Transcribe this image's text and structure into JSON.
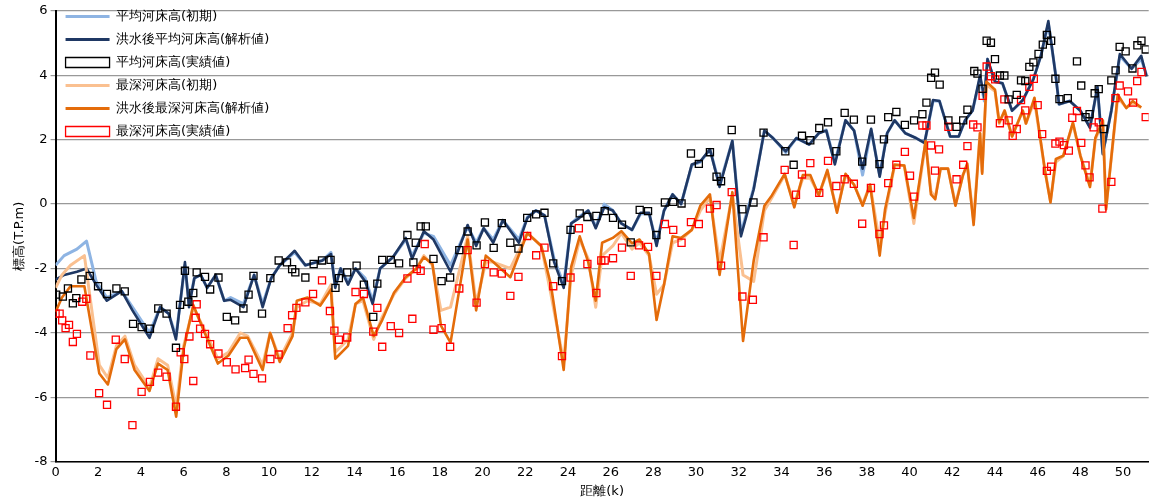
{
  "chart_data": {
    "type": "line",
    "xlabel": "距離(k)",
    "ylabel": "標高(T.P.m)",
    "xlim": [
      0,
      51.2
    ],
    "xticks": [
      0,
      2,
      4,
      6,
      8,
      10,
      12,
      14,
      16,
      18,
      20,
      22,
      24,
      26,
      28,
      30,
      32,
      34,
      36,
      38,
      40,
      42,
      44,
      46,
      48,
      50
    ],
    "ylim": [
      -8,
      6
    ],
    "yticks": [
      -8,
      -6,
      -4,
      -2,
      0,
      2,
      4,
      6
    ],
    "grid": "y",
    "legend": "top left",
    "series": [
      {
        "name": "平均河床高(初期)",
        "marker": "none",
        "color": "#8eb4e3",
        "x": [
          0,
          0.4,
          1.0,
          1.45,
          1.9,
          2.4,
          3.1,
          3.6,
          4.4,
          4.9,
          5.3,
          5.64,
          6.06,
          6.25,
          6.5,
          6.8,
          7.1,
          7.5,
          7.9,
          8.2,
          8.8,
          9.3,
          9.7,
          10.1,
          10.5,
          11.2,
          11.7,
          12.5,
          12.9,
          13.1,
          13.35,
          13.7,
          14.05,
          14.5,
          14.85,
          15.2,
          15.8,
          16.4,
          16.7,
          17.25,
          17.7,
          18.5,
          19.3,
          19.7,
          20.05,
          20.5,
          20.95,
          21.7,
          22.1,
          22.5,
          22.9,
          23.35,
          23.8,
          24.15,
          24.5,
          24.95,
          25.3,
          25.7,
          26.1,
          26.5,
          27.0,
          27.4,
          27.8,
          28.15,
          28.5,
          28.9,
          29.3,
          29.8,
          30.2,
          30.65,
          31.1,
          31.7,
          32.1,
          32.7,
          33.2,
          33.6,
          34.2,
          34.7,
          35.3,
          35.75,
          36.1,
          36.5,
          37.0,
          37.4,
          37.8,
          38.2,
          38.6,
          38.95,
          39.3,
          39.8,
          40.3,
          40.7,
          41.1,
          41.4,
          41.9,
          42.3,
          42.6,
          42.95,
          43.3,
          43.5,
          43.65,
          44.0,
          44.35,
          44.8,
          45.3,
          45.8,
          46.15,
          46.5,
          46.85,
          47.0,
          47.5,
          48.0,
          48.45,
          48.8,
          49.05,
          49.45,
          49.85,
          50.4,
          50.85,
          51.1
        ],
        "values": [
          -1.9,
          -1.6,
          -1.4,
          -1.15,
          -2.4,
          -2.9,
          -2.7,
          -3.2,
          -4.0,
          -3.2,
          -3.4,
          -4.1,
          -1.9,
          -3.1,
          -2.3,
          -2.2,
          -2.6,
          -2.2,
          -3.0,
          -2.9,
          -3.1,
          -2.2,
          -3.1,
          -2.3,
          -1.9,
          -1.5,
          -1.9,
          -1.75,
          -1.5,
          -2.5,
          -2.0,
          -2.4,
          -2.0,
          -2.3,
          -3.0,
          -2.0,
          -1.65,
          -1.1,
          -1.6,
          -0.9,
          -1.0,
          -1.9,
          -0.7,
          -1.2,
          -0.75,
          -1.1,
          -0.5,
          -1.1,
          -0.4,
          -0.2,
          -0.35,
          -1.7,
          -2.5,
          -0.6,
          -0.4,
          -0.2,
          -0.7,
          0.0,
          -0.2,
          -0.6,
          -0.8,
          -0.3,
          -0.3,
          -1.2,
          -0.2,
          0.3,
          0.0,
          1.2,
          1.3,
          1.7,
          0.6,
          1.96,
          -0.9,
          0.5,
          2.28,
          2.05,
          1.6,
          2.05,
          1.85,
          2.2,
          2.3,
          1.3,
          2.6,
          2.28,
          0.9,
          2.3,
          0.9,
          2.2,
          2.6,
          2.2,
          2.05,
          1.9,
          3.2,
          3.2,
          2.1,
          2.1,
          2.6,
          2.9,
          3.9,
          3.2,
          4.5,
          3.8,
          3.75,
          2.9,
          3.2,
          3.9,
          4.6,
          5.6,
          4.0,
          3.1,
          3.2,
          2.9,
          2.4,
          3.6,
          1.6,
          2.9,
          4.6,
          4.2,
          4.5,
          4.0
        ]
      },
      {
        "name": "洪水後平均河床高(解析値)",
        "marker": "none",
        "color": "#1f3864",
        "x": [
          0,
          0.4,
          1.0,
          1.45,
          1.9,
          2.4,
          3.1,
          3.6,
          4.4,
          4.9,
          5.3,
          5.64,
          6.06,
          6.25,
          6.5,
          6.8,
          7.1,
          7.5,
          7.9,
          8.2,
          8.8,
          9.3,
          9.7,
          10.1,
          10.5,
          11.2,
          11.7,
          12.5,
          12.9,
          13.1,
          13.35,
          13.7,
          14.05,
          14.5,
          14.85,
          15.2,
          15.8,
          16.4,
          16.7,
          17.25,
          17.7,
          18.5,
          19.3,
          19.7,
          20.05,
          20.5,
          20.95,
          21.7,
          22.1,
          22.5,
          22.9,
          23.35,
          23.8,
          24.15,
          24.5,
          24.95,
          25.3,
          25.7,
          26.1,
          26.5,
          27.0,
          27.4,
          27.8,
          28.15,
          28.5,
          28.9,
          29.3,
          29.8,
          30.2,
          30.65,
          31.1,
          31.7,
          32.1,
          32.7,
          33.2,
          33.6,
          34.2,
          34.7,
          35.3,
          35.75,
          36.1,
          36.5,
          37.0,
          37.4,
          37.8,
          38.2,
          38.6,
          38.95,
          39.3,
          39.8,
          40.3,
          40.7,
          41.1,
          41.4,
          41.9,
          42.3,
          42.6,
          42.95,
          43.3,
          43.5,
          43.65,
          44.0,
          44.35,
          44.8,
          45.3,
          45.8,
          46.15,
          46.5,
          46.85,
          47.0,
          47.5,
          48.0,
          48.45,
          48.8,
          49.05,
          49.45,
          49.85,
          50.4,
          50.85,
          51.1
        ],
        "values": [
          -2.35,
          -2.2,
          -2.1,
          -2.0,
          -2.5,
          -3.0,
          -2.7,
          -3.3,
          -4.15,
          -3.2,
          -3.4,
          -4.2,
          -1.8,
          -3.2,
          -2.3,
          -2.2,
          -2.6,
          -2.2,
          -3.0,
          -2.97,
          -3.2,
          -2.2,
          -3.2,
          -2.3,
          -1.9,
          -1.45,
          -1.9,
          -1.75,
          -1.55,
          -2.6,
          -2.0,
          -2.5,
          -2.0,
          -2.4,
          -3.1,
          -2.0,
          -1.65,
          -1.05,
          -1.7,
          -0.84,
          -1.1,
          -2.1,
          -0.65,
          -1.3,
          -0.75,
          -1.2,
          -0.5,
          -1.2,
          -0.43,
          -0.2,
          -0.35,
          -1.8,
          -2.6,
          -0.6,
          -0.45,
          -0.2,
          -0.75,
          -0.1,
          -0.2,
          -0.6,
          -0.8,
          -0.27,
          -0.27,
          -1.3,
          -0.2,
          0.3,
          0.0,
          1.23,
          1.33,
          1.7,
          0.53,
          1.96,
          -1.0,
          0.46,
          2.28,
          2.05,
          1.64,
          2.05,
          1.85,
          2.2,
          2.28,
          1.23,
          2.6,
          2.28,
          1.1,
          2.34,
          0.85,
          2.2,
          2.6,
          2.2,
          2.05,
          1.9,
          3.23,
          3.2,
          2.1,
          2.1,
          2.6,
          2.9,
          4.0,
          3.3,
          4.5,
          3.8,
          3.75,
          2.9,
          3.23,
          3.87,
          4.6,
          5.68,
          3.96,
          3.1,
          3.2,
          2.9,
          2.37,
          3.65,
          1.55,
          2.9,
          4.66,
          4.2,
          4.6,
          3.96
        ]
      },
      {
        "name": "平均河床高(実績値)",
        "type": "scatter",
        "marker": "square",
        "color": "#000000",
        "x": [
          0.03,
          0.34,
          0.58,
          0.81,
          0.97,
          1.21,
          1.6,
          1.99,
          2.41,
          2.85,
          3.24,
          3.63,
          4.03,
          4.42,
          4.81,
          5.2,
          5.64,
          5.83,
          6.06,
          6.22,
          6.45,
          6.61,
          7.0,
          7.24,
          7.63,
          8.02,
          8.41,
          8.8,
          9.04,
          9.27,
          9.67,
          10.06,
          10.45,
          10.84,
          11.08,
          11.23,
          11.7,
          12.09,
          12.48,
          12.88,
          13.11,
          13.27,
          13.66,
          14.1,
          14.44,
          14.88,
          15.07,
          15.3,
          15.7,
          16.09,
          16.48,
          16.76,
          16.87,
          17.1,
          17.34,
          17.7,
          18.08,
          18.48,
          18.91,
          19.3,
          19.72,
          20.11,
          20.52,
          20.9,
          21.3,
          21.68,
          22.09,
          22.51,
          22.9,
          23.31,
          23.72,
          24.12,
          24.55,
          24.91,
          25.33,
          25.72,
          26.11,
          26.53,
          26.94,
          27.36,
          27.75,
          28.14,
          28.54,
          28.93,
          29.32,
          29.76,
          30.13,
          30.65,
          30.96,
          31.17,
          31.67,
          32.17,
          32.69,
          33.16,
          34.18,
          34.57,
          34.96,
          35.35,
          35.77,
          36.18,
          36.57,
          36.96,
          37.39,
          37.78,
          38.19,
          38.59,
          38.8,
          39.0,
          39.38,
          39.78,
          40.21,
          40.6,
          40.79,
          41.01,
          41.19,
          41.41,
          41.82,
          42.2,
          42.51,
          42.71,
          43.03,
          43.18,
          43.42,
          43.61,
          43.81,
          44.0,
          44.23,
          44.44,
          44.64,
          45.02,
          45.22,
          45.42,
          45.61,
          45.8,
          46.04,
          46.24,
          46.43,
          46.63,
          46.83,
          47.02,
          47.41,
          47.84,
          48.04,
          48.24,
          48.43,
          48.67,
          48.86,
          49.09,
          49.45,
          49.65,
          49.84,
          50.12,
          50.44,
          50.67,
          50.86,
          51.06
        ],
        "values": [
          -2.81,
          -2.87,
          -2.62,
          -3.08,
          -2.92,
          -2.34,
          -2.23,
          -2.55,
          -2.79,
          -2.62,
          -2.71,
          -3.72,
          -3.82,
          -3.87,
          -3.24,
          -3.4,
          -4.46,
          -3.13,
          -2.07,
          -3.03,
          -2.76,
          -2.12,
          -2.26,
          -2.65,
          -2.28,
          -3.5,
          -3.61,
          -3.24,
          -2.81,
          -2.23,
          -3.4,
          -2.3,
          -1.75,
          -1.81,
          -2.02,
          -2.12,
          -2.28,
          -1.86,
          -1.75,
          -1.73,
          -2.6,
          -2.3,
          -2.12,
          -1.91,
          -2.5,
          -3.5,
          -2.47,
          -1.73,
          -1.73,
          -1.84,
          -0.96,
          -1.81,
          -1.2,
          -0.69,
          -0.69,
          -1.7,
          -2.39,
          -2.28,
          -1.43,
          -0.85,
          -1.28,
          -0.57,
          -1.36,
          -0.59,
          -1.2,
          -1.38,
          -0.43,
          -0.32,
          -0.27,
          -1.84,
          -2.39,
          -0.8,
          -0.29,
          -0.4,
          -0.37,
          -0.22,
          -0.43,
          -0.64,
          -1.19,
          -0.18,
          -0.22,
          -0.96,
          0.05,
          0.07,
          0.02,
          1.57,
          1.25,
          1.61,
          0.85,
          0.71,
          2.3,
          -0.16,
          0.05,
          2.22,
          1.64,
          1.22,
          2.12,
          1.98,
          2.36,
          2.54,
          1.64,
          2.83,
          2.62,
          1.32,
          2.62,
          1.24,
          2.01,
          2.7,
          2.86,
          2.46,
          2.6,
          2.79,
          3.15,
          3.92,
          4.08,
          3.71,
          2.6,
          2.4,
          2.6,
          2.93,
          4.13,
          4.05,
          3.58,
          5.07,
          5.01,
          4.5,
          3.99,
          3.99,
          3.25,
          3.39,
          3.84,
          3.82,
          4.26,
          4.4,
          4.66,
          4.95,
          5.25,
          5.07,
          3.89,
          3.26,
          3.29,
          4.43,
          3.68,
          2.7,
          2.79,
          3.44,
          3.57,
          2.33,
          3.84,
          4.15,
          4.88,
          4.74,
          4.21,
          4.93,
          5.07,
          4.8
        ]
      },
      {
        "name": "最深河床高(初期)",
        "marker": "none",
        "color": "#fac090",
        "x": [
          0,
          0.3,
          0.7,
          1.35,
          2.05,
          2.45,
          2.85,
          3.25,
          3.7,
          4.4,
          4.8,
          5.25,
          5.65,
          6.0,
          6.45,
          6.9,
          7.6,
          8.1,
          8.65,
          9.0,
          9.7,
          10.05,
          10.5,
          11.1,
          11.3,
          11.8,
          12.4,
          12.9,
          13.1,
          13.7,
          14.05,
          14.4,
          14.9,
          15.3,
          15.85,
          16.4,
          16.9,
          17.25,
          17.65,
          18.05,
          18.5,
          19.3,
          19.7,
          20.15,
          20.5,
          21.3,
          22.1,
          22.75,
          23.2,
          23.8,
          24.15,
          24.55,
          24.95,
          25.3,
          25.6,
          26.1,
          26.5,
          27.0,
          27.35,
          27.8,
          28.15,
          28.5,
          28.9,
          29.3,
          29.8,
          30.2,
          30.65,
          31.1,
          31.7,
          32.2,
          32.7,
          33.2,
          33.55,
          34.15,
          34.6,
          35.0,
          35.35,
          35.75,
          36.15,
          36.6,
          37.0,
          37.4,
          37.8,
          38.15,
          38.6,
          38.85,
          39.3,
          39.75,
          40.2,
          40.75,
          41.0,
          41.2,
          41.45,
          41.8,
          42.15,
          42.5,
          42.7,
          43.0,
          43.3,
          43.4,
          43.6,
          44.0,
          44.2,
          44.45,
          44.8,
          45.3,
          45.45,
          45.85,
          46.35,
          46.6,
          46.85,
          47.2,
          47.65,
          48.0,
          48.45,
          48.7,
          49.05,
          49.2,
          49.75,
          50.15,
          50.45,
          50.85
        ],
        "values": [
          -2.6,
          -2.2,
          -1.9,
          -1.6,
          -5.0,
          -5.4,
          -4.4,
          -4.1,
          -5.0,
          -5.7,
          -4.8,
          -5.0,
          -6.3,
          -4.4,
          -3.2,
          -3.8,
          -4.8,
          -4.6,
          -4.0,
          -4.1,
          -5.0,
          -4.0,
          -4.8,
          -4.0,
          -3.2,
          -3.0,
          -3.1,
          -2.5,
          -4.6,
          -4.2,
          -3.1,
          -3.0,
          -4.2,
          -3.5,
          -2.8,
          -2.3,
          -2.0,
          -1.6,
          -1.9,
          -3.3,
          -3.2,
          -1.0,
          -3.1,
          -1.8,
          -1.8,
          -2.0,
          -0.9,
          -1.3,
          -2.8,
          -4.9,
          -2.2,
          -1.1,
          -1.7,
          -3.2,
          -1.6,
          -1.3,
          -0.9,
          -1.4,
          -1.2,
          -1.6,
          -2.8,
          -2.5,
          -1.2,
          -1.1,
          -0.8,
          -0.2,
          0.2,
          -1.8,
          0.3,
          -2.2,
          -2.4,
          -0.2,
          0.2,
          0.9,
          0.0,
          0.8,
          0.8,
          0.3,
          1.0,
          -0.2,
          0.9,
          0.6,
          0.0,
          0.6,
          -1.2,
          -0.3,
          1.2,
          1.2,
          -0.6,
          1.9,
          0.4,
          0.2,
          1.1,
          1.1,
          0.0,
          0.9,
          1.2,
          -0.5,
          2.2,
          1.0,
          3.7,
          3.5,
          2.5,
          2.9,
          2.1,
          2.9,
          2.5,
          3.2,
          1.0,
          0.1,
          1.3,
          1.5,
          2.5,
          1.5,
          0.6,
          2.0,
          2.6,
          -0.1,
          3.3,
          3.0,
          3.1,
          3.0
        ]
      },
      {
        "name": "洪水後最深河床高(解析値)",
        "marker": "none",
        "color": "#e46c0a",
        "x": [
          0,
          0.3,
          0.7,
          1.35,
          2.05,
          2.45,
          2.85,
          3.25,
          3.7,
          4.4,
          4.8,
          5.25,
          5.65,
          6.0,
          6.45,
          6.9,
          7.6,
          8.1,
          8.65,
          9.0,
          9.7,
          10.05,
          10.5,
          11.1,
          11.3,
          11.8,
          12.4,
          12.9,
          13.1,
          13.7,
          14.05,
          14.4,
          14.9,
          15.3,
          15.85,
          16.4,
          16.9,
          17.25,
          17.65,
          18.05,
          18.5,
          19.3,
          19.7,
          20.15,
          20.5,
          21.3,
          22.1,
          22.75,
          23.2,
          23.8,
          24.15,
          24.55,
          24.95,
          25.3,
          25.6,
          26.1,
          26.5,
          27.0,
          27.35,
          27.8,
          28.15,
          28.5,
          28.9,
          29.3,
          29.8,
          30.2,
          30.65,
          31.1,
          31.7,
          32.2,
          32.7,
          33.2,
          33.55,
          34.15,
          34.6,
          35.0,
          35.35,
          35.75,
          36.15,
          36.6,
          37.0,
          37.4,
          37.8,
          38.15,
          38.6,
          38.85,
          39.3,
          39.75,
          40.2,
          40.75,
          41.0,
          41.2,
          41.45,
          41.8,
          42.15,
          42.5,
          42.7,
          43.0,
          43.3,
          43.4,
          43.6,
          44.0,
          44.2,
          44.45,
          44.8,
          45.3,
          45.45,
          45.85,
          46.35,
          46.6,
          46.85,
          47.2,
          47.65,
          48.0,
          48.45,
          48.7,
          49.05,
          49.2,
          49.75,
          50.15,
          50.45,
          50.85
        ],
        "values": [
          -3.35,
          -2.9,
          -2.55,
          -2.55,
          -5.26,
          -5.6,
          -4.5,
          -4.2,
          -5.15,
          -5.8,
          -4.95,
          -5.15,
          -6.6,
          -4.5,
          -3.13,
          -3.86,
          -4.95,
          -4.7,
          -4.15,
          -4.15,
          -5.15,
          -4.0,
          -4.9,
          -4.1,
          -3.0,
          -2.9,
          -3.15,
          -2.65,
          -4.8,
          -4.4,
          -3.1,
          -2.9,
          -4.1,
          -3.6,
          -2.75,
          -2.27,
          -2.0,
          -1.65,
          -1.85,
          -3.77,
          -4.3,
          -1.1,
          -3.3,
          -1.6,
          -1.8,
          -2.27,
          -0.9,
          -1.3,
          -2.5,
          -5.15,
          -1.95,
          -1.0,
          -1.8,
          -3.0,
          -1.2,
          -1.05,
          -0.84,
          -1.22,
          -1.1,
          -1.55,
          -3.6,
          -2.5,
          -1.0,
          -1.05,
          -0.8,
          -0.05,
          0.3,
          -2.2,
          0.37,
          -4.25,
          -1.75,
          -0.05,
          0.27,
          0.94,
          -0.1,
          0.9,
          0.9,
          0.27,
          1.06,
          -0.27,
          0.94,
          0.6,
          -0.05,
          0.6,
          -1.6,
          -0.17,
          1.23,
          1.2,
          -0.43,
          1.96,
          0.3,
          0.15,
          1.1,
          1.1,
          -0.05,
          0.9,
          1.26,
          -0.65,
          2.2,
          0.94,
          3.8,
          3.55,
          2.53,
          2.9,
          2.1,
          2.9,
          2.5,
          3.3,
          1.0,
          0.05,
          1.4,
          1.5,
          2.53,
          1.5,
          0.53,
          2.05,
          2.6,
          -0.17,
          3.4,
          2.98,
          3.2,
          3.0
        ]
      },
      {
        "name": "最深河床高(実績値)",
        "type": "scatter",
        "marker": "square",
        "color": "#ff0000",
        "x": [
          0,
          0.19,
          0.31,
          0.47,
          0.63,
          0.81,
          1.0,
          1.25,
          1.44,
          1.63,
          2.04,
          2.41,
          2.82,
          3.24,
          3.6,
          4.03,
          4.42,
          4.81,
          5.2,
          5.64,
          5.86,
          6.03,
          6.27,
          6.45,
          6.56,
          6.61,
          6.77,
          7.0,
          7.24,
          7.63,
          8.02,
          8.43,
          8.88,
          9.04,
          9.27,
          9.67,
          10.06,
          10.45,
          10.87,
          11.08,
          11.28,
          11.7,
          12.06,
          12.48,
          12.85,
          13.06,
          13.27,
          13.66,
          14.05,
          14.44,
          14.88,
          15.07,
          15.3,
          15.7,
          16.09,
          16.48,
          16.71,
          16.92,
          17.1,
          17.29,
          17.7,
          18.08,
          18.48,
          18.91,
          19.3,
          19.72,
          20.11,
          20.52,
          20.9,
          21.3,
          21.68,
          22.09,
          22.51,
          22.9,
          23.31,
          23.72,
          24.12,
          24.51,
          24.91,
          25.33,
          25.56,
          25.72,
          26.11,
          26.53,
          26.94,
          27.33,
          27.75,
          28.14,
          28.54,
          28.93,
          29.32,
          29.76,
          30.13,
          30.65,
          30.96,
          31.17,
          31.67,
          32.17,
          32.66,
          33.16,
          34.15,
          34.57,
          34.68,
          34.96,
          35.35,
          35.77,
          36.18,
          36.57,
          36.96,
          37.39,
          37.78,
          38.19,
          38.59,
          38.8,
          39.0,
          39.38,
          39.78,
          40.02,
          40.21,
          40.6,
          40.79,
          41.01,
          41.19,
          41.38,
          41.82,
          42.2,
          42.51,
          42.71,
          42.98,
          43.18,
          43.42,
          43.61,
          43.81,
          44.01,
          44.23,
          44.44,
          44.64,
          44.83,
          45.02,
          45.22,
          45.42,
          45.61,
          45.82,
          46.0,
          46.21,
          46.43,
          46.63,
          46.83,
          47.02,
          47.23,
          47.46,
          47.62,
          47.84,
          48.04,
          48.24,
          48.43,
          48.62,
          48.86,
          49.03,
          49.45,
          49.64,
          49.84,
          50.23,
          50.47,
          50.66,
          50.86,
          51.06
        ],
        "values": [
          -3.4,
          -3.4,
          -3.61,
          -3.85,
          -3.75,
          -4.28,
          -4.03,
          -3.03,
          -2.94,
          -4.7,
          -5.87,
          -6.23,
          -4.21,
          -4.81,
          -6.86,
          -5.83,
          -5.52,
          -5.23,
          -5.36,
          -6.29,
          -4.6,
          -4.81,
          -4.11,
          -5.49,
          -3.53,
          -3.11,
          -3.87,
          -4.03,
          -4.35,
          -4.64,
          -4.91,
          -5.13,
          -5.09,
          -4.83,
          -5.27,
          -5.41,
          -4.81,
          -4.67,
          -3.85,
          -3.45,
          -3.22,
          -3.05,
          -2.79,
          -2.37,
          -3.32,
          -3.93,
          -4.21,
          -4.14,
          -2.73,
          -2.79,
          -3.96,
          -3.22,
          -4.43,
          -3.79,
          -4.0,
          -2.31,
          -3.56,
          -2.02,
          -2.07,
          -1.24,
          -3.9,
          -3.85,
          -4.43,
          -2.62,
          -1.43,
          -3.06,
          -1.86,
          -2.12,
          -2.16,
          -2.85,
          -2.26,
          -0.99,
          -1.59,
          -1.35,
          -2.55,
          -4.72,
          -2.28,
          -0.75,
          -1.86,
          -2.76,
          -1.75,
          -1.75,
          -1.68,
          -1.35,
          -2.23,
          -1.28,
          -1.33,
          -2.23,
          -0.62,
          -0.8,
          -1.2,
          -0.56,
          -0.62,
          -0.14,
          -0.03,
          -1.91,
          0.37,
          -2.87,
          -2.97,
          -1.03,
          1.06,
          -1.27,
          0.29,
          0.92,
          1.27,
          0.35,
          1.34,
          0.56,
          0.77,
          0.63,
          -0.61,
          0.5,
          -0.93,
          -0.66,
          0.65,
          1.22,
          1.62,
          0.88,
          0.23,
          2.44,
          2.44,
          1.82,
          1.04,
          1.7,
          2.4,
          0.77,
          1.22,
          1.8,
          2.47,
          2.38,
          3.36,
          4.27,
          3.97,
          3.87,
          2.51,
          3.25,
          2.6,
          2.12,
          2.33,
          3.23,
          2.91,
          3.64,
          3.89,
          3.07,
          2.17,
          1.03,
          1.16,
          1.88,
          1.94,
          1.83,
          1.66,
          2.68,
          2.89,
          1.9,
          1.2,
          0.83,
          2.38,
          2.54,
          -0.14,
          0.69,
          3.29,
          3.68,
          3.5,
          3.15,
          3.82,
          4.1,
          2.7
        ]
      }
    ]
  }
}
